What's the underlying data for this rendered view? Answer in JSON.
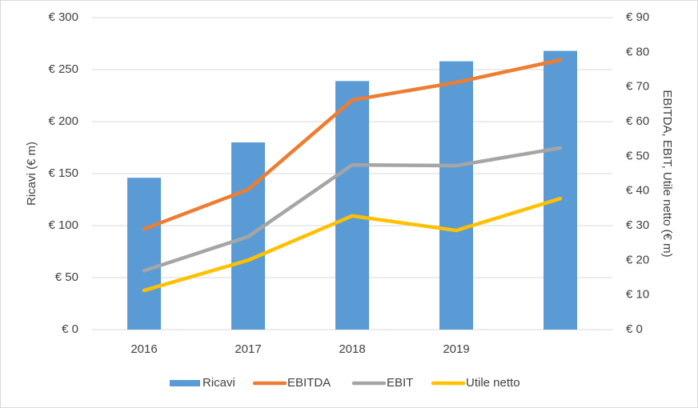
{
  "chart_data": {
    "type": "bar-line",
    "categories": [
      "2016",
      "2017",
      "2018",
      "2019",
      null
    ],
    "series": [
      {
        "name": "Ricavi",
        "type": "bar",
        "color": "#5b9bd5",
        "values": [
          146,
          180,
          239,
          258,
          268
        ]
      },
      {
        "name": "EBITDA",
        "type": "line",
        "axis": "y2",
        "color": "#ed7d31",
        "values": [
          29,
          40.4,
          66.2,
          71.3,
          77.8
        ]
      },
      {
        "name": "EBIT",
        "type": "line",
        "axis": "y2",
        "color": "#a5a5a5",
        "values": [
          17,
          26.8,
          47.5,
          47.3,
          52.4
        ]
      },
      {
        "name": "Utile netto",
        "type": "line",
        "axis": "y2",
        "color": "#ffc000",
        "values": [
          11.3,
          20,
          32.8,
          28.6,
          37.8
        ]
      }
    ],
    "ylabel": "Ricavi (€ m)",
    "y2label": "EBITDA, EBIT, Utile netto (€ m)",
    "ylim": [
      0,
      300
    ],
    "yticks": [
      {
        "value": 0,
        "label": "€ 0"
      },
      {
        "value": 50,
        "label": "€ 50"
      },
      {
        "value": 100,
        "label": "€ 100"
      },
      {
        "value": 150,
        "label": "€ 150"
      },
      {
        "value": 200,
        "label": "€ 200"
      },
      {
        "value": 250,
        "label": "€ 250"
      },
      {
        "value": 300,
        "label": "€ 300"
      }
    ],
    "y2lim": [
      0,
      90
    ],
    "y2ticks": [
      {
        "value": 0,
        "label": "€ 0"
      },
      {
        "value": 10,
        "label": "€ 10"
      },
      {
        "value": 20,
        "label": "€ 20"
      },
      {
        "value": 30,
        "label": "€ 30"
      },
      {
        "value": 40,
        "label": "€ 40"
      },
      {
        "value": 50,
        "label": "€ 50"
      },
      {
        "value": 60,
        "label": "€ 60"
      },
      {
        "value": 70,
        "label": "€ 70"
      },
      {
        "value": 80,
        "label": "€ 80"
      },
      {
        "value": 90,
        "label": "€ 90"
      }
    ],
    "grid": true,
    "legend": "bottom"
  }
}
